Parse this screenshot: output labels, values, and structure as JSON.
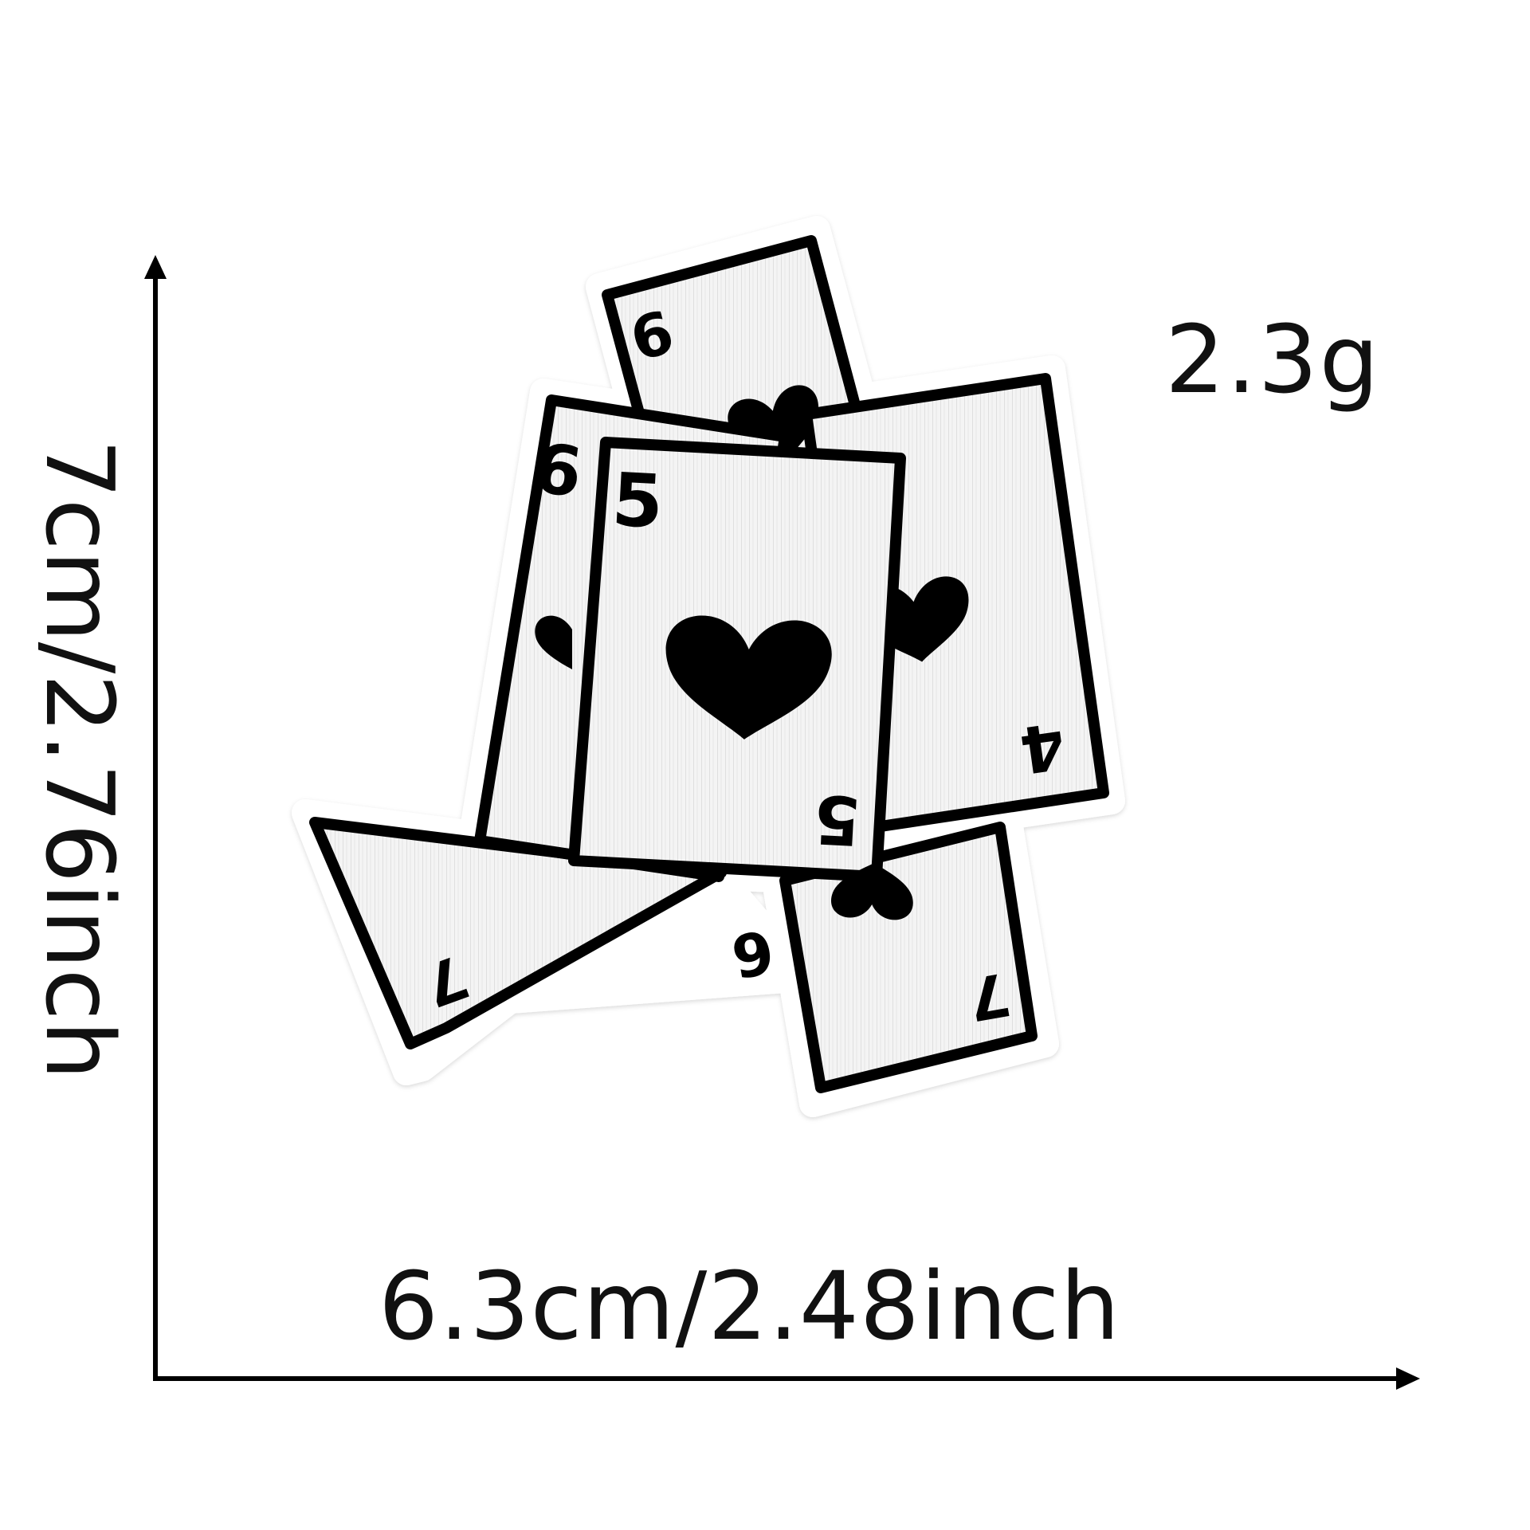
{
  "product": {
    "weight": "2.3g",
    "width_dimension": "6.3cm/2.48inch",
    "height_dimension": "7cm/2.76inch"
  },
  "patch": {
    "cards": [
      {
        "rank": "6"
      },
      {
        "rank": "6"
      },
      {
        "rank": "5"
      },
      {
        "rank": "4"
      },
      {
        "rank": "7"
      },
      {
        "rank": "7"
      }
    ]
  },
  "colors": {
    "outline": "#000000",
    "card_fill": "#f4f4f4",
    "border": "#ffffff"
  }
}
